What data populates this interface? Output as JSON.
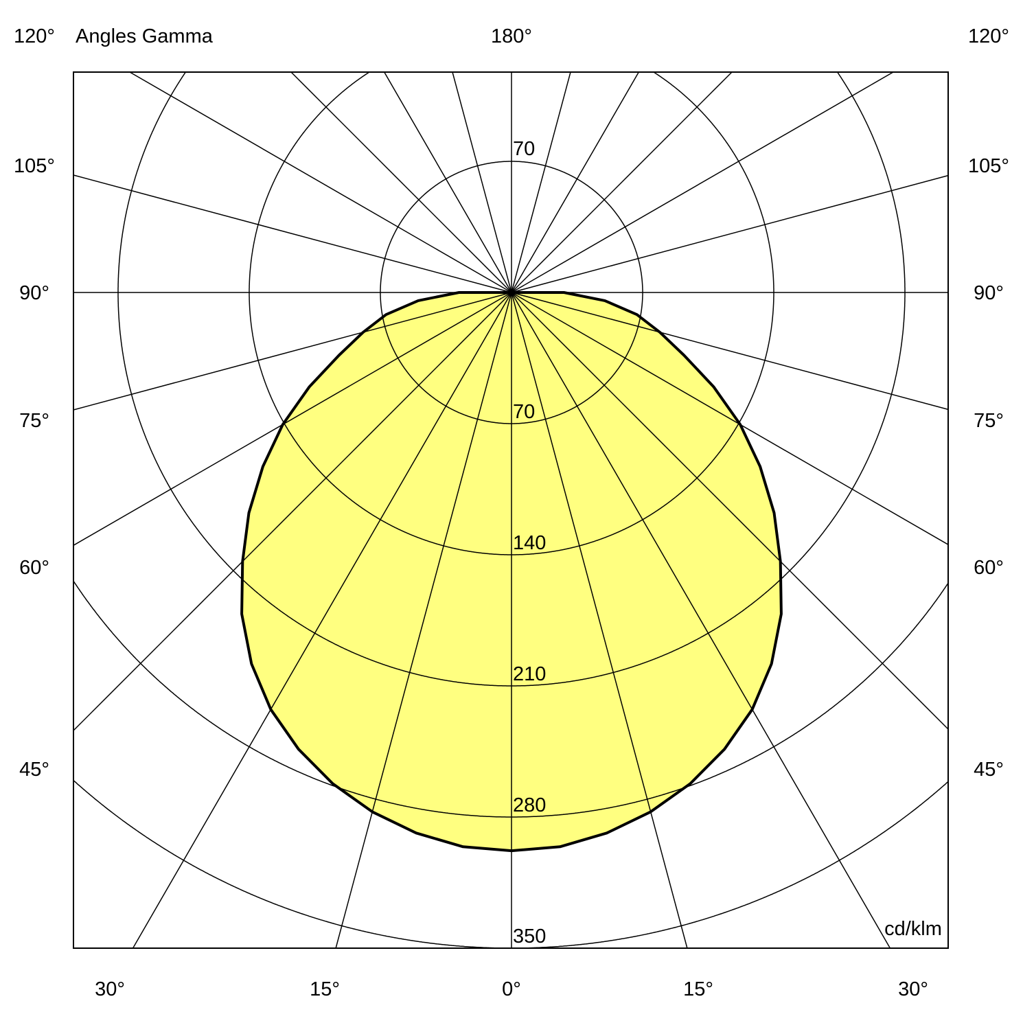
{
  "chart_data": {
    "type": "polar",
    "title": "Angles Gamma",
    "unit": "cd/klm",
    "top_label": "180°",
    "side_labels": [
      "120°",
      "105°",
      "90°",
      "75°",
      "60°",
      "45°"
    ],
    "bottom_labels": [
      "30°",
      "15°",
      "0°",
      "15°",
      "30°"
    ],
    "ring_values": [
      70,
      140,
      210,
      280,
      350
    ],
    "ring_labels": [
      "70",
      "140",
      "210",
      "280",
      "350"
    ],
    "top_ring_label": "70",
    "grid": true,
    "radial_step_deg": 15,
    "fill_color": "#ffff80",
    "line_color": "#000000",
    "series": [
      {
        "gamma": [
          0,
          5,
          10,
          15,
          20,
          25,
          30,
          35,
          40,
          45,
          50,
          55,
          60,
          65,
          70,
          75,
          80,
          85,
          90
        ],
        "values": [
          298,
          297,
          293,
          287,
          279,
          269,
          257,
          242,
          224,
          203,
          183,
          162,
          141,
          119,
          98,
          82,
          68,
          50,
          28
        ]
      }
    ]
  }
}
